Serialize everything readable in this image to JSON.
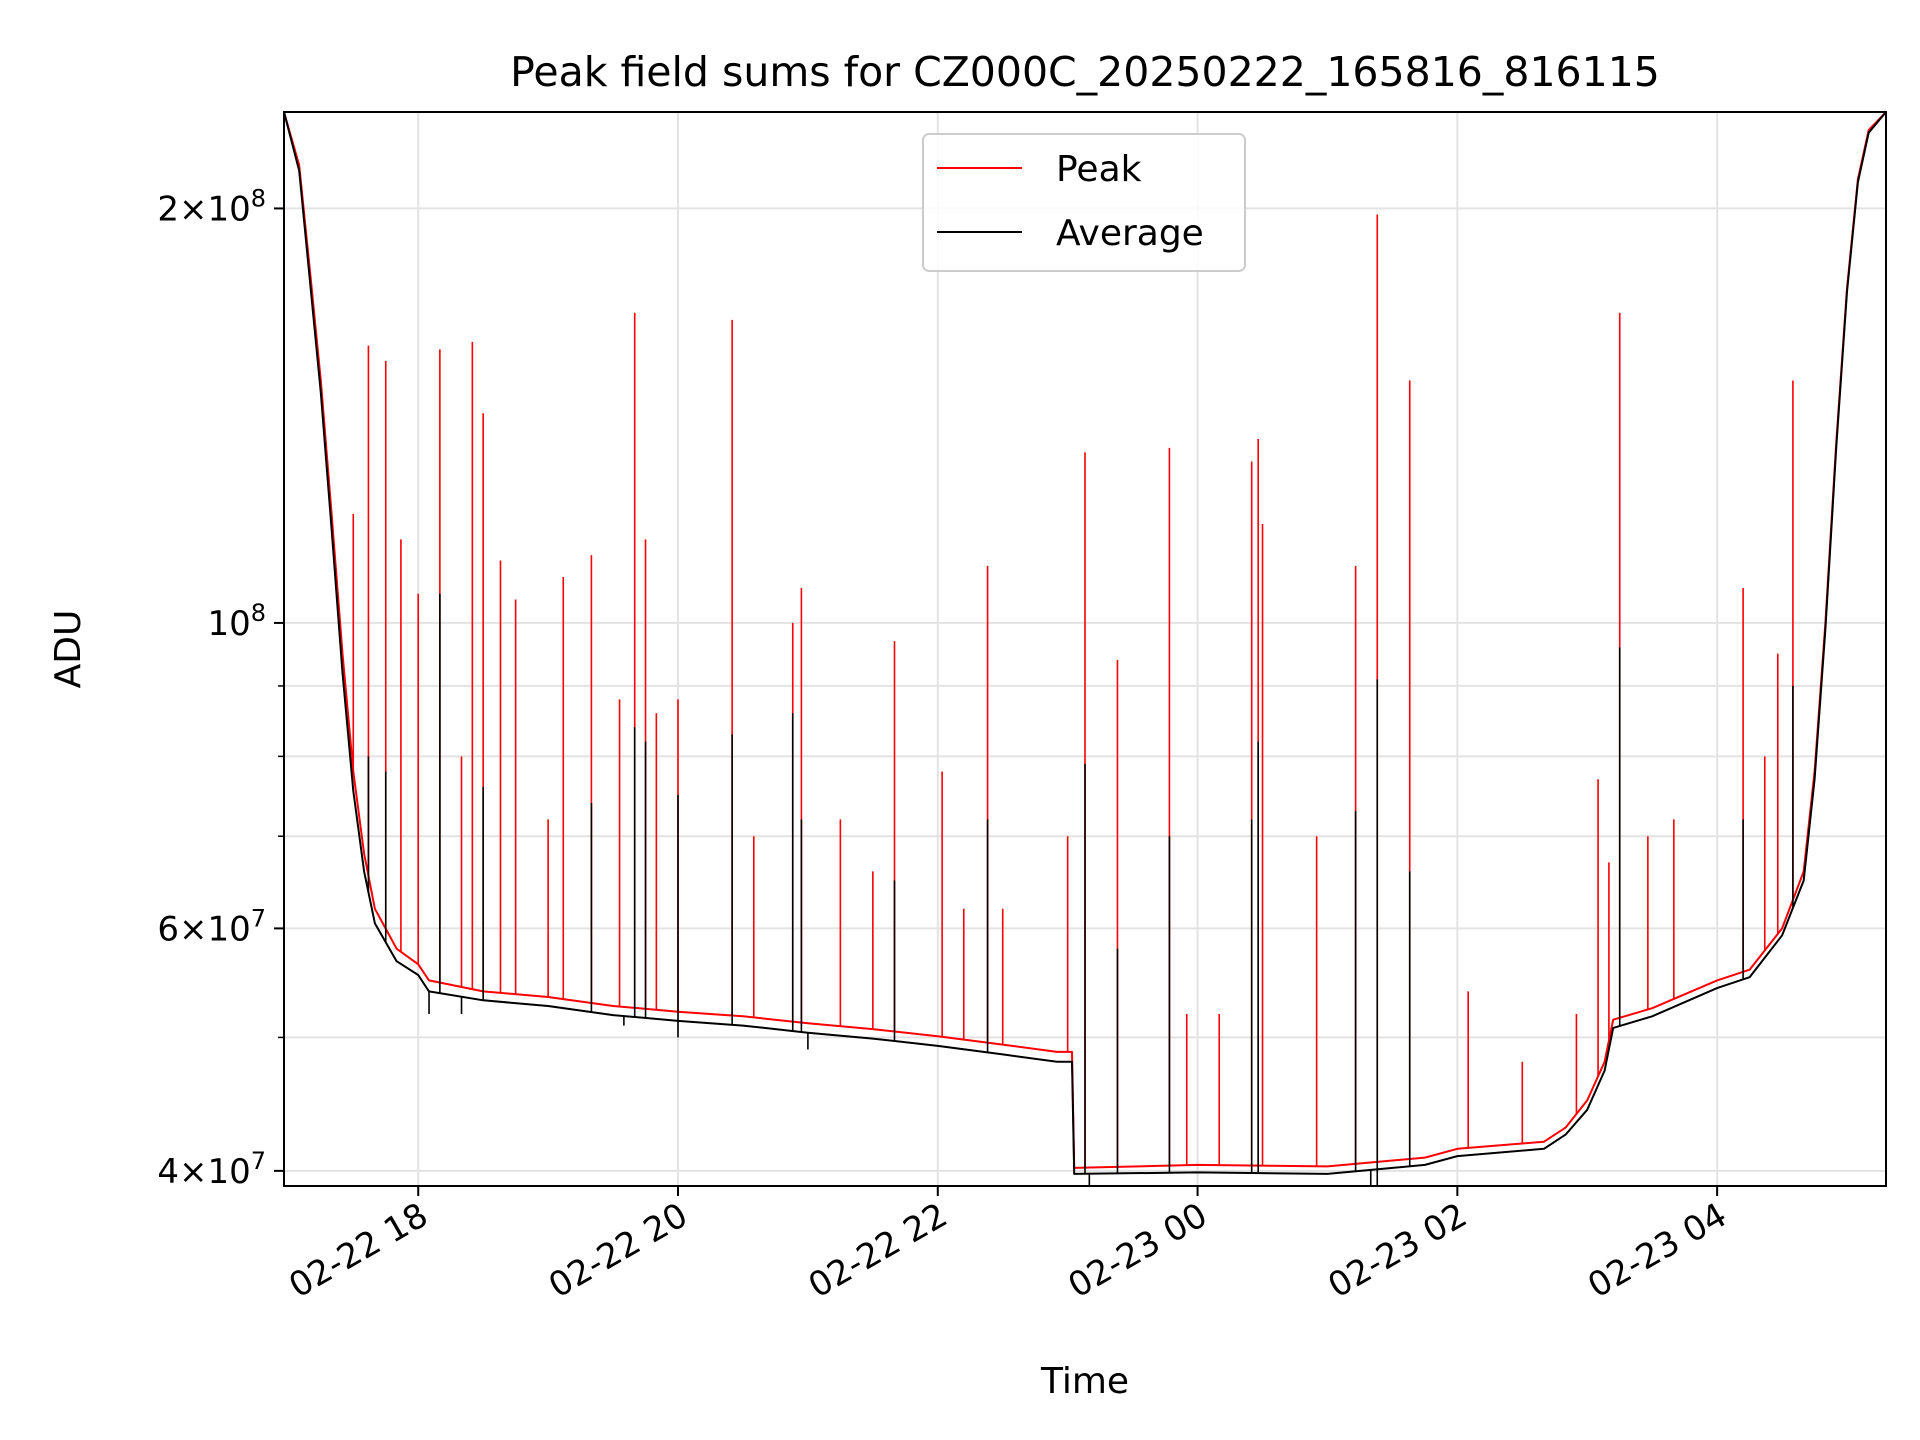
{
  "chart_data": {
    "type": "line",
    "title": "Peak field sums for CZ000C_20250222_165816_816115",
    "xlabel": "Time",
    "ylabel": "ADU",
    "yscale": "log",
    "xlim": [
      "2025-02-22 16:58",
      "2025-02-23 05:18"
    ],
    "ylim": [
      39000000,
      235000000
    ],
    "grid": true,
    "legend": {
      "placement": "top-center",
      "entries": [
        "Peak",
        "Average"
      ]
    },
    "x_ticks": [
      {
        "t": "2025-02-22 18:00",
        "label": "02-22 18"
      },
      {
        "t": "2025-02-22 20:00",
        "label": "02-22 20"
      },
      {
        "t": "2025-02-22 22:00",
        "label": "02-22 22"
      },
      {
        "t": "2025-02-23 00:00",
        "label": "02-23 00"
      },
      {
        "t": "2025-02-23 02:00",
        "label": "02-23 02"
      },
      {
        "t": "2025-02-23 04:00",
        "label": "02-23 04"
      }
    ],
    "y_ticks": [
      {
        "v": 40000000,
        "base": "4",
        "mult": "×",
        "pow": "10",
        "exp": "7"
      },
      {
        "v": 60000000,
        "base": "6",
        "mult": "×",
        "pow": "10",
        "exp": "7"
      },
      {
        "v": 100000000,
        "base": "",
        "mult": "",
        "pow": "10",
        "exp": "8"
      },
      {
        "v": 200000000,
        "base": "2",
        "mult": "×",
        "pow": "10",
        "exp": "8"
      }
    ],
    "y_minor_ticks": [
      50000000,
      70000000,
      80000000,
      90000000
    ],
    "series": [
      {
        "name": "Peak",
        "color": "#ff0000",
        "baseline": [
          [
            "2025-02-22 16:58",
            235000000
          ],
          [
            "2025-02-22 17:05",
            215000000
          ],
          [
            "2025-02-22 17:10",
            180000000
          ],
          [
            "2025-02-22 17:15",
            150000000
          ],
          [
            "2025-02-22 17:20",
            120000000
          ],
          [
            "2025-02-22 17:25",
            95000000
          ],
          [
            "2025-02-22 17:30",
            78000000
          ],
          [
            "2025-02-22 17:35",
            68000000
          ],
          [
            "2025-02-22 17:40",
            62000000
          ],
          [
            "2025-02-22 17:50",
            58000000
          ],
          [
            "2025-02-22 18:00",
            56500000
          ],
          [
            "2025-02-22 18:05",
            55000000
          ],
          [
            "2025-02-22 18:30",
            54000000
          ],
          [
            "2025-02-22 19:00",
            53500000
          ],
          [
            "2025-02-22 19:30",
            52700000
          ],
          [
            "2025-02-22 20:00",
            52200000
          ],
          [
            "2025-02-22 20:30",
            51800000
          ],
          [
            "2025-02-22 21:00",
            51200000
          ],
          [
            "2025-02-22 21:30",
            50700000
          ],
          [
            "2025-02-22 22:00",
            50100000
          ],
          [
            "2025-02-22 22:30",
            49400000
          ],
          [
            "2025-02-22 22:55",
            48800000
          ],
          [
            "2025-02-22 23:02",
            48800000
          ],
          [
            "2025-02-22 23:03",
            40200000
          ],
          [
            "2025-02-23 00:00",
            40400000
          ],
          [
            "2025-02-23 01:00",
            40300000
          ],
          [
            "2025-02-23 01:45",
            40900000
          ],
          [
            "2025-02-23 02:00",
            41500000
          ],
          [
            "2025-02-23 02:40",
            42000000
          ],
          [
            "2025-02-23 02:50",
            43000000
          ],
          [
            "2025-02-23 03:00",
            45000000
          ],
          [
            "2025-02-23 03:08",
            48000000
          ],
          [
            "2025-02-23 03:12",
            51500000
          ],
          [
            "2025-02-23 03:30",
            52500000
          ],
          [
            "2025-02-23 04:00",
            55000000
          ],
          [
            "2025-02-23 04:15",
            56000000
          ],
          [
            "2025-02-23 04:30",
            60000000
          ],
          [
            "2025-02-23 04:40",
            66000000
          ],
          [
            "2025-02-23 04:45",
            78000000
          ],
          [
            "2025-02-23 04:50",
            100000000
          ],
          [
            "2025-02-23 04:55",
            135000000
          ],
          [
            "2025-02-23 05:00",
            175000000
          ],
          [
            "2025-02-23 05:05",
            210000000
          ],
          [
            "2025-02-23 05:10",
            228000000
          ],
          [
            "2025-02-23 05:18",
            235000000
          ]
        ],
        "spikes": [
          [
            "2025-02-22 17:12",
            168000000
          ],
          [
            "2025-02-22 17:30",
            120000000
          ],
          [
            "2025-02-22 17:37",
            159000000
          ],
          [
            "2025-02-22 17:45",
            155000000
          ],
          [
            "2025-02-22 17:52",
            115000000
          ],
          [
            "2025-02-22 18:00",
            105000000
          ],
          [
            "2025-02-22 18:10",
            158000000
          ],
          [
            "2025-02-22 18:20",
            80000000
          ],
          [
            "2025-02-22 18:25",
            160000000
          ],
          [
            "2025-02-22 18:30",
            142000000
          ],
          [
            "2025-02-22 18:38",
            111000000
          ],
          [
            "2025-02-22 18:45",
            104000000
          ],
          [
            "2025-02-22 19:00",
            72000000
          ],
          [
            "2025-02-22 19:07",
            108000000
          ],
          [
            "2025-02-22 19:20",
            112000000
          ],
          [
            "2025-02-22 19:33",
            88000000
          ],
          [
            "2025-02-22 19:40",
            168000000
          ],
          [
            "2025-02-22 19:45",
            115000000
          ],
          [
            "2025-02-22 19:50",
            86000000
          ],
          [
            "2025-02-22 20:00",
            88000000
          ],
          [
            "2025-02-22 20:25",
            166000000
          ],
          [
            "2025-02-22 20:35",
            70000000
          ],
          [
            "2025-02-22 20:53",
            100000000
          ],
          [
            "2025-02-22 20:57",
            106000000
          ],
          [
            "2025-02-22 21:15",
            72000000
          ],
          [
            "2025-02-22 21:30",
            66000000
          ],
          [
            "2025-02-22 21:40",
            97000000
          ],
          [
            "2025-02-22 22:02",
            78000000
          ],
          [
            "2025-02-22 22:12",
            62000000
          ],
          [
            "2025-02-22 22:23",
            110000000
          ],
          [
            "2025-02-22 22:30",
            62000000
          ],
          [
            "2025-02-22 23:00",
            70000000
          ],
          [
            "2025-02-22 23:08",
            133000000
          ],
          [
            "2025-02-22 23:23",
            94000000
          ],
          [
            "2025-02-22 23:47",
            134000000
          ],
          [
            "2025-02-22 23:55",
            52000000
          ],
          [
            "2025-02-23 00:10",
            52000000
          ],
          [
            "2025-02-23 00:25",
            131000000
          ],
          [
            "2025-02-23 00:28",
            136000000
          ],
          [
            "2025-02-23 00:30",
            118000000
          ],
          [
            "2025-02-23 00:55",
            70000000
          ],
          [
            "2025-02-23 01:13",
            110000000
          ],
          [
            "2025-02-23 01:23",
            198000000
          ],
          [
            "2025-02-23 01:38",
            150000000
          ],
          [
            "2025-02-23 02:05",
            54000000
          ],
          [
            "2025-02-23 02:30",
            48000000
          ],
          [
            "2025-02-23 02:55",
            52000000
          ],
          [
            "2025-02-23 03:05",
            77000000
          ],
          [
            "2025-02-23 03:10",
            67000000
          ],
          [
            "2025-02-23 03:15",
            168000000
          ],
          [
            "2025-02-23 03:28",
            70000000
          ],
          [
            "2025-02-23 03:40",
            72000000
          ],
          [
            "2025-02-23 04:12",
            106000000
          ],
          [
            "2025-02-23 04:22",
            80000000
          ],
          [
            "2025-02-23 04:28",
            95000000
          ],
          [
            "2025-02-23 04:35",
            150000000
          ]
        ]
      },
      {
        "name": "Average",
        "color": "#000000",
        "baseline": [
          [
            "2025-02-22 16:58",
            235000000
          ],
          [
            "2025-02-22 17:05",
            213000000
          ],
          [
            "2025-02-22 17:10",
            177000000
          ],
          [
            "2025-02-22 17:15",
            147000000
          ],
          [
            "2025-02-22 17:20",
            117000000
          ],
          [
            "2025-02-22 17:25",
            92000000
          ],
          [
            "2025-02-22 17:30",
            75500000
          ],
          [
            "2025-02-22 17:35",
            66000000
          ],
          [
            "2025-02-22 17:40",
            60500000
          ],
          [
            "2025-02-22 17:50",
            56800000
          ],
          [
            "2025-02-22 18:00",
            55500000
          ],
          [
            "2025-02-22 18:05",
            54000000
          ],
          [
            "2025-02-22 18:30",
            53200000
          ],
          [
            "2025-02-22 19:00",
            52700000
          ],
          [
            "2025-02-22 19:30",
            51900000
          ],
          [
            "2025-02-22 20:00",
            51400000
          ],
          [
            "2025-02-22 20:30",
            51000000
          ],
          [
            "2025-02-22 21:00",
            50400000
          ],
          [
            "2025-02-22 21:30",
            49900000
          ],
          [
            "2025-02-22 22:00",
            49300000
          ],
          [
            "2025-02-22 22:30",
            48600000
          ],
          [
            "2025-02-22 22:55",
            48000000
          ],
          [
            "2025-02-22 23:02",
            48000000
          ],
          [
            "2025-02-22 23:03",
            39800000
          ],
          [
            "2025-02-23 00:00",
            39900000
          ],
          [
            "2025-02-23 01:00",
            39800000
          ],
          [
            "2025-02-23 01:45",
            40400000
          ],
          [
            "2025-02-23 02:00",
            41000000
          ],
          [
            "2025-02-23 02:40",
            41500000
          ],
          [
            "2025-02-23 02:50",
            42500000
          ],
          [
            "2025-02-23 03:00",
            44300000
          ],
          [
            "2025-02-23 03:08",
            47300000
          ],
          [
            "2025-02-23 03:12",
            50800000
          ],
          [
            "2025-02-23 03:30",
            51800000
          ],
          [
            "2025-02-23 04:00",
            54300000
          ],
          [
            "2025-02-23 04:15",
            55300000
          ],
          [
            "2025-02-23 04:30",
            59300000
          ],
          [
            "2025-02-23 04:40",
            65000000
          ],
          [
            "2025-02-23 04:45",
            77000000
          ],
          [
            "2025-02-23 04:50",
            99000000
          ],
          [
            "2025-02-23 04:55",
            134000000
          ],
          [
            "2025-02-23 05:00",
            174000000
          ],
          [
            "2025-02-23 05:05",
            209000000
          ],
          [
            "2025-02-23 05:10",
            227000000
          ],
          [
            "2025-02-23 05:18",
            235000000
          ]
        ],
        "spikes": [
          [
            "2025-02-22 17:37",
            80000000
          ],
          [
            "2025-02-22 17:45",
            78000000
          ],
          [
            "2025-02-22 18:10",
            105000000
          ],
          [
            "2025-02-22 18:30",
            76000000
          ],
          [
            "2025-02-22 19:20",
            74000000
          ],
          [
            "2025-02-22 19:40",
            84000000
          ],
          [
            "2025-02-22 19:45",
            82000000
          ],
          [
            "2025-02-22 20:00",
            75000000
          ],
          [
            "2025-02-22 20:25",
            83000000
          ],
          [
            "2025-02-22 20:53",
            86000000
          ],
          [
            "2025-02-22 20:57",
            72000000
          ],
          [
            "2025-02-22 21:40",
            65000000
          ],
          [
            "2025-02-22 22:23",
            72000000
          ],
          [
            "2025-02-22 23:08",
            79000000
          ],
          [
            "2025-02-22 23:23",
            58000000
          ],
          [
            "2025-02-22 23:47",
            70000000
          ],
          [
            "2025-02-23 00:25",
            72000000
          ],
          [
            "2025-02-23 00:28",
            82000000
          ],
          [
            "2025-02-23 01:13",
            73000000
          ],
          [
            "2025-02-23 01:23",
            91000000
          ],
          [
            "2025-02-23 01:38",
            66000000
          ],
          [
            "2025-02-23 03:15",
            96000000
          ],
          [
            "2025-02-23 04:12",
            72000000
          ],
          [
            "2025-02-23 04:35",
            90000000
          ]
        ],
        "dips": [
          [
            "2025-02-22 18:05",
            52000000
          ],
          [
            "2025-02-22 18:20",
            52000000
          ],
          [
            "2025-02-22 19:35",
            51000000
          ],
          [
            "2025-02-22 20:00",
            50000000
          ],
          [
            "2025-02-22 21:00",
            49000000
          ],
          [
            "2025-02-22 23:10",
            38500000
          ],
          [
            "2025-02-23 01:20",
            38700000
          ],
          [
            "2025-02-23 01:23",
            38600000
          ]
        ]
      }
    ]
  }
}
